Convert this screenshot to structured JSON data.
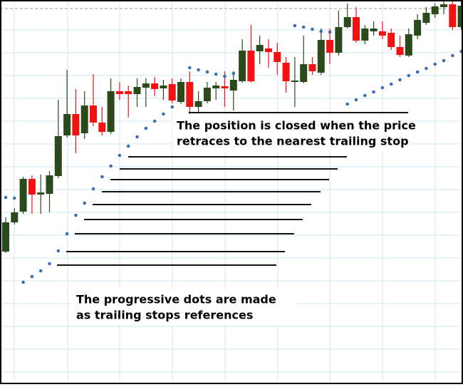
{
  "chart_data": {
    "type": "candlestick",
    "categories": [
      null,
      null,
      null,
      null,
      null,
      null,
      null,
      null,
      null,
      null,
      null,
      null,
      null,
      null,
      null,
      null,
      null,
      null,
      null,
      null,
      null,
      null,
      null,
      null,
      null,
      null,
      null,
      null,
      null,
      null,
      null,
      null,
      null,
      null,
      null,
      null,
      null,
      null,
      null,
      null,
      null,
      null,
      null,
      null,
      null,
      null,
      null,
      null,
      null,
      null,
      null,
      null,
      null
    ],
    "open": [
      186,
      227,
      242,
      288,
      266,
      267,
      292,
      349,
      379,
      352,
      391,
      367,
      354,
      411,
      411,
      407,
      416,
      422,
      415,
      421,
      396,
      424,
      389,
      397,
      415,
      418,
      412,
      425,
      468,
      467,
      471,
      466,
      451,
      424,
      424,
      449,
      437,
      483,
      465,
      501,
      515,
      482,
      495,
      495,
      493,
      473,
      461,
      489,
      507,
      519,
      529,
      533,
      501
    ],
    "high": [
      234,
      247,
      291,
      293,
      294,
      299,
      399,
      441,
      414,
      411,
      435,
      389,
      429,
      424,
      419,
      429,
      429,
      431,
      427,
      429,
      429,
      439,
      411,
      424,
      424,
      439,
      439,
      484,
      504,
      489,
      484,
      479,
      459,
      459,
      489,
      459,
      499,
      499,
      524,
      534,
      529,
      504,
      509,
      509,
      499,
      489,
      499,
      519,
      529,
      534,
      537,
      537,
      537
    ],
    "low": [
      184,
      224,
      239,
      239,
      239,
      241,
      289,
      346,
      324,
      344,
      362,
      349,
      351,
      399,
      374,
      389,
      389,
      404,
      399,
      394,
      393,
      379,
      381,
      394,
      399,
      389,
      384,
      423,
      423,
      449,
      444,
      434,
      409,
      389,
      422,
      434,
      434,
      449,
      461,
      499,
      479,
      477,
      489,
      484,
      469,
      459,
      459,
      484,
      504,
      514,
      519,
      497,
      497
    ],
    "close": [
      227,
      241,
      288,
      266,
      269,
      293,
      348,
      379,
      349,
      391,
      367,
      354,
      411,
      407,
      407,
      417,
      422,
      414,
      419,
      398,
      424,
      389,
      397,
      416,
      419,
      415,
      427,
      468,
      425,
      476,
      466,
      452,
      425,
      426,
      449,
      439,
      483,
      465,
      501,
      515,
      482,
      499,
      499,
      489,
      473,
      462,
      491,
      511,
      521,
      530,
      533,
      501,
      531
    ],
    "up_color": "#2b4a1b",
    "down_color": "#f21212",
    "dots": {
      "color": "#3b6fb3",
      "values": [
        262,
        261,
        143,
        151,
        159,
        169,
        187,
        211,
        237,
        254,
        274,
        291,
        306,
        321,
        334,
        347,
        359,
        369,
        379,
        389,
        null,
        444,
        441,
        438,
        435,
        432,
        436,
        null,
        null,
        null,
        null,
        null,
        null,
        503,
        501,
        498,
        495,
        494,
        null,
        393,
        399,
        405,
        410,
        416,
        421,
        427,
        433,
        438,
        443,
        449,
        454,
        461,
        467
      ]
    },
    "ylim": [
      0,
      539
    ],
    "annotations": [
      "The position is closed when the price",
      "retraces to the nearest trailing stop",
      "The progressive dots are made",
      "as trailing stops references"
    ]
  }
}
